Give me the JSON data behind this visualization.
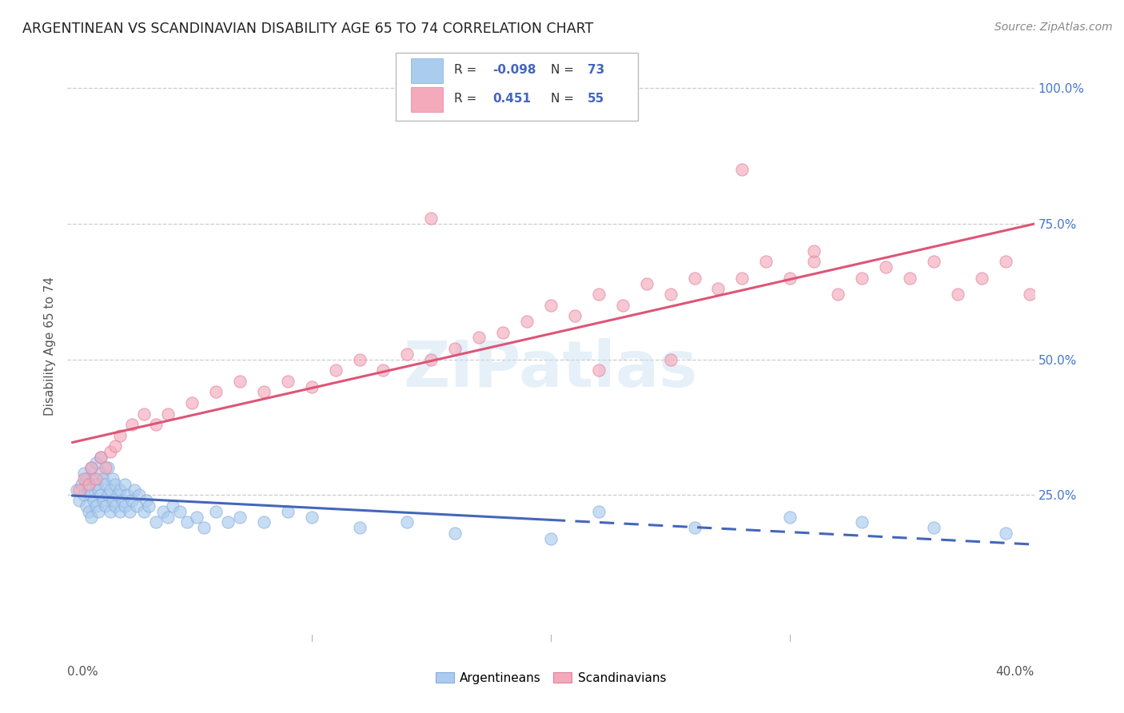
{
  "title": "ARGENTINEAN VS SCANDINAVIAN DISABILITY AGE 65 TO 74 CORRELATION CHART",
  "source": "Source: ZipAtlas.com",
  "ylabel": "Disability Age 65 to 74",
  "right_yticks": [
    "100.0%",
    "75.0%",
    "50.0%",
    "25.0%"
  ],
  "right_ytick_vals": [
    1.0,
    0.75,
    0.5,
    0.25
  ],
  "xlim": [
    -0.002,
    0.402
  ],
  "ylim": [
    -0.02,
    1.07
  ],
  "legend_R_blue": "-0.098",
  "legend_N_blue": "73",
  "legend_R_pink": "0.451",
  "legend_N_pink": "55",
  "blue_fill": "#aaccee",
  "blue_edge": "#88aadd",
  "pink_fill": "#f4aabb",
  "pink_edge": "#e080a0",
  "blue_line": "#4466bb",
  "pink_line": "#dd5577",
  "watermark": "ZIPatlas",
  "arg_x": [
    0.002,
    0.003,
    0.004,
    0.005,
    0.005,
    0.006,
    0.006,
    0.007,
    0.007,
    0.008,
    0.008,
    0.008,
    0.009,
    0.009,
    0.01,
    0.01,
    0.01,
    0.011,
    0.011,
    0.012,
    0.012,
    0.012,
    0.013,
    0.013,
    0.014,
    0.014,
    0.015,
    0.015,
    0.016,
    0.016,
    0.017,
    0.017,
    0.018,
    0.018,
    0.019,
    0.02,
    0.02,
    0.021,
    0.022,
    0.022,
    0.023,
    0.024,
    0.025,
    0.026,
    0.027,
    0.028,
    0.03,
    0.031,
    0.032,
    0.035,
    0.038,
    0.04,
    0.042,
    0.045,
    0.048,
    0.052,
    0.055,
    0.06,
    0.065,
    0.07,
    0.08,
    0.09,
    0.1,
    0.12,
    0.14,
    0.16,
    0.2,
    0.22,
    0.26,
    0.3,
    0.33,
    0.36,
    0.39
  ],
  "arg_y": [
    0.26,
    0.24,
    0.27,
    0.25,
    0.29,
    0.23,
    0.28,
    0.22,
    0.26,
    0.21,
    0.25,
    0.3,
    0.24,
    0.28,
    0.23,
    0.27,
    0.31,
    0.22,
    0.26,
    0.25,
    0.29,
    0.32,
    0.24,
    0.28,
    0.23,
    0.27,
    0.25,
    0.3,
    0.22,
    0.26,
    0.24,
    0.28,
    0.23,
    0.27,
    0.25,
    0.22,
    0.26,
    0.24,
    0.23,
    0.27,
    0.25,
    0.22,
    0.24,
    0.26,
    0.23,
    0.25,
    0.22,
    0.24,
    0.23,
    0.2,
    0.22,
    0.21,
    0.23,
    0.22,
    0.2,
    0.21,
    0.19,
    0.22,
    0.2,
    0.21,
    0.2,
    0.22,
    0.21,
    0.19,
    0.2,
    0.18,
    0.17,
    0.22,
    0.19,
    0.21,
    0.2,
    0.19,
    0.18
  ],
  "scan_x": [
    0.003,
    0.005,
    0.007,
    0.008,
    0.01,
    0.012,
    0.014,
    0.016,
    0.018,
    0.02,
    0.025,
    0.03,
    0.035,
    0.04,
    0.05,
    0.06,
    0.07,
    0.08,
    0.09,
    0.1,
    0.11,
    0.12,
    0.13,
    0.14,
    0.15,
    0.16,
    0.17,
    0.18,
    0.19,
    0.2,
    0.21,
    0.22,
    0.23,
    0.24,
    0.25,
    0.26,
    0.27,
    0.28,
    0.29,
    0.3,
    0.31,
    0.32,
    0.33,
    0.34,
    0.35,
    0.36,
    0.37,
    0.38,
    0.39,
    0.4,
    0.15,
    0.28,
    0.31,
    0.25,
    0.22
  ],
  "scan_y": [
    0.26,
    0.28,
    0.27,
    0.3,
    0.28,
    0.32,
    0.3,
    0.33,
    0.34,
    0.36,
    0.38,
    0.4,
    0.38,
    0.4,
    0.42,
    0.44,
    0.46,
    0.44,
    0.46,
    0.45,
    0.48,
    0.5,
    0.48,
    0.51,
    0.5,
    0.52,
    0.54,
    0.55,
    0.57,
    0.6,
    0.58,
    0.62,
    0.6,
    0.64,
    0.62,
    0.65,
    0.63,
    0.65,
    0.68,
    0.65,
    0.68,
    0.62,
    0.65,
    0.67,
    0.65,
    0.68,
    0.62,
    0.65,
    0.68,
    0.62,
    0.76,
    0.85,
    0.7,
    0.5,
    0.48
  ]
}
